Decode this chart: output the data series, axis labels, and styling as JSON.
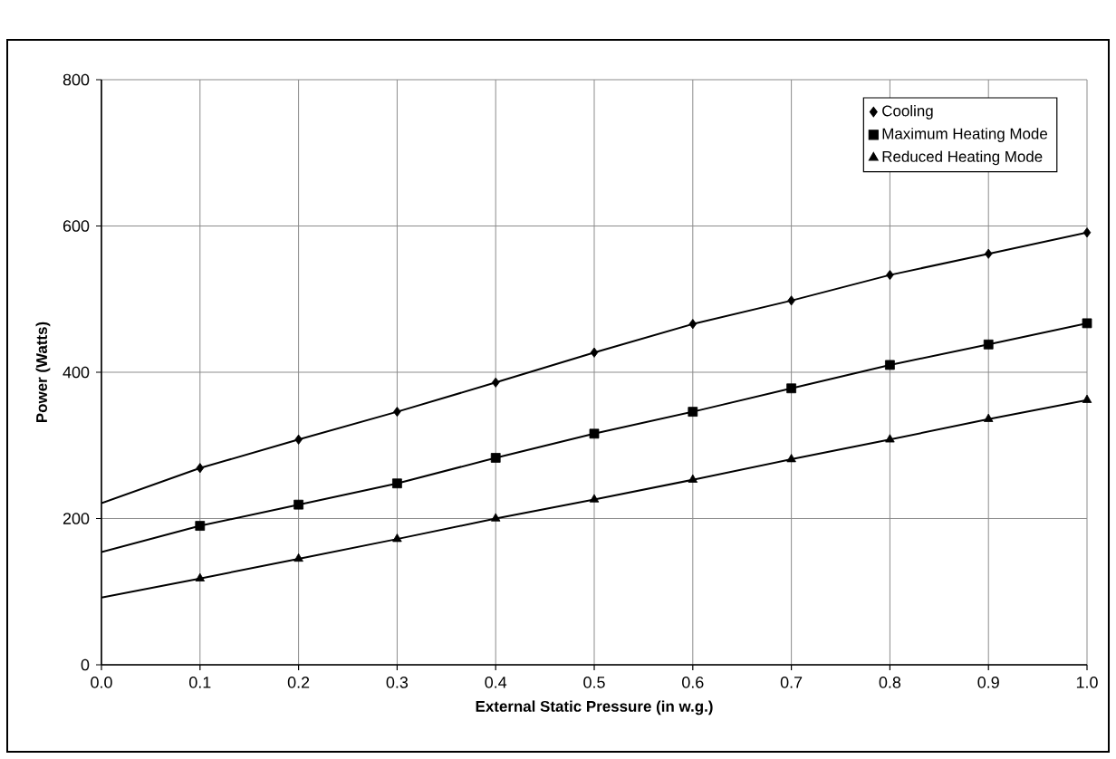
{
  "chart_data": {
    "type": "scatter",
    "xlabel": "External Static Pressure (in w.g.)",
    "ylabel": "Power (Watts)",
    "xlim": [
      0,
      1
    ],
    "ylim": [
      0,
      800
    ],
    "xticks": [
      {
        "value": 0,
        "label": "0.0"
      },
      0.1,
      0.2,
      0.3,
      0.4,
      0.5,
      0.6,
      0.7,
      0.8,
      0.9,
      {
        "value": 1,
        "label": "1.0"
      }
    ],
    "yticks": [
      0,
      200,
      400,
      600,
      800
    ],
    "grid": true,
    "legend": "top right",
    "series": [
      {
        "name": "Cooling",
        "marker": "diamond",
        "color": "#000000",
        "x": [
          0.1,
          0.2,
          0.3,
          0.4,
          0.5,
          0.6,
          0.7,
          0.8,
          0.9,
          1.0
        ],
        "values": [
          269,
          308,
          346,
          386,
          427,
          466,
          498,
          533,
          562,
          591
        ]
      },
      {
        "name": "Maximum Heating Mode",
        "marker": "square",
        "color": "#000000",
        "x": [
          0.1,
          0.2,
          0.3,
          0.4,
          0.5,
          0.6,
          0.7,
          0.8,
          0.9,
          1.0
        ],
        "values": [
          190,
          219,
          248,
          283,
          316,
          346,
          378,
          410,
          438,
          467
        ]
      },
      {
        "name": "Reduced Heating Mode",
        "marker": "triangle",
        "color": "#000000",
        "x": [
          0.1,
          0.2,
          0.3,
          0.4,
          0.5,
          0.6,
          0.7,
          0.8,
          0.9,
          1.0
        ],
        "values": [
          118,
          145,
          172,
          200,
          226,
          253,
          281,
          308,
          336,
          362
        ]
      },
      {
        "type": "line",
        "color": "#000000",
        "x": [
          0,
          0.1,
          0.2,
          0.3,
          0.4,
          0.5,
          0.6,
          0.7,
          0.8,
          0.9,
          1.0
        ],
        "values": [
          221,
          269,
          308,
          346,
          386,
          427,
          466,
          498,
          533,
          562,
          591
        ]
      },
      {
        "type": "line",
        "color": "#000000",
        "x": [
          0,
          0.1,
          0.2,
          0.3,
          0.4,
          0.5,
          0.6,
          0.7,
          0.8,
          0.9,
          1.0
        ],
        "values": [
          154,
          190,
          219,
          248,
          283,
          316,
          346,
          378,
          410,
          438,
          467
        ]
      },
      {
        "type": "line",
        "color": "#000000",
        "x": [
          0,
          0.1,
          0.2,
          0.3,
          0.4,
          0.5,
          0.6,
          0.7,
          0.8,
          0.9,
          1.0
        ],
        "values": [
          92,
          118,
          145,
          172,
          200,
          226,
          253,
          281,
          308,
          336,
          362
        ]
      }
    ]
  }
}
